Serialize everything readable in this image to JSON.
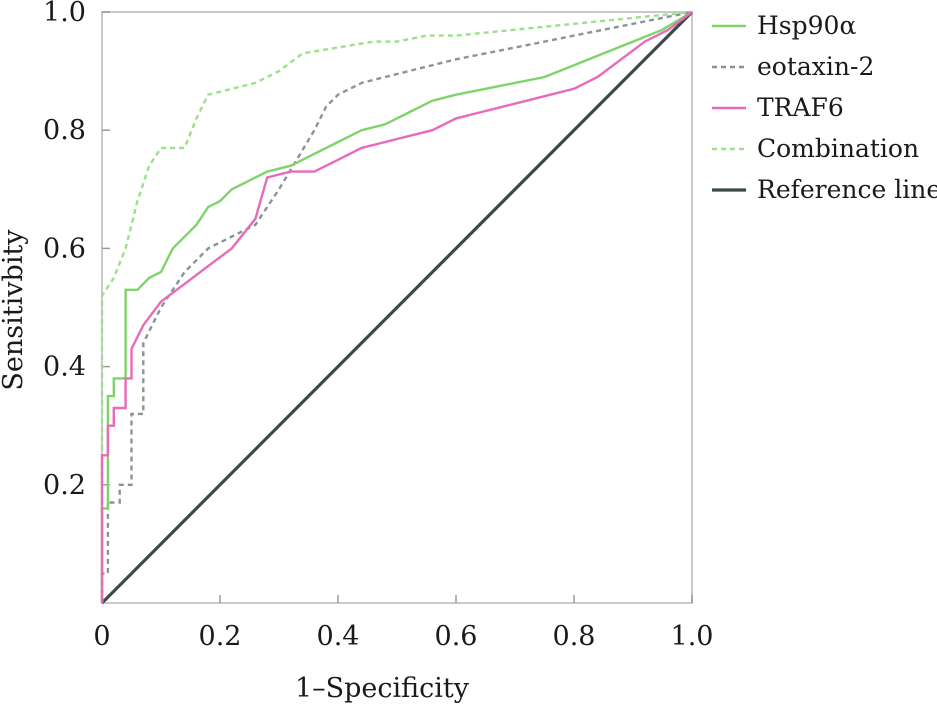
{
  "chart_data": {
    "type": "line",
    "xlabel": "1–Specificity",
    "ylabel": "Sensitivbity",
    "xlim": [
      0,
      1
    ],
    "ylim": [
      0,
      1
    ],
    "x_ticks": [
      {
        "value": 0,
        "label": "0"
      },
      {
        "value": 0.2,
        "label": "0.2"
      },
      {
        "value": 0.4,
        "label": "0.4"
      },
      {
        "value": 0.6,
        "label": "0.6"
      },
      {
        "value": 0.8,
        "label": "0.8"
      },
      {
        "value": 1.0,
        "label": "1.0"
      }
    ],
    "y_ticks": [
      {
        "value": 0.2,
        "label": "0.2"
      },
      {
        "value": 0.4,
        "label": "0.4"
      },
      {
        "value": 0.6,
        "label": "0.6"
      },
      {
        "value": 0.8,
        "label": "0.8"
      },
      {
        "value": 1.0,
        "label": "1.0"
      }
    ],
    "legend_position": "right",
    "series": [
      {
        "name": "Hsp90α",
        "color": "#7ed36a",
        "style": "solid",
        "x": [
          0,
          0,
          0.01,
          0.01,
          0.02,
          0.02,
          0.04,
          0.04,
          0.06,
          0.08,
          0.1,
          0.12,
          0.14,
          0.16,
          0.18,
          0.2,
          0.22,
          0.24,
          0.28,
          0.32,
          0.36,
          0.4,
          0.44,
          0.48,
          0.52,
          0.56,
          0.6,
          0.65,
          0.7,
          0.75,
          0.8,
          0.85,
          0.9,
          0.95,
          1.0
        ],
        "y": [
          0,
          0.16,
          0.16,
          0.35,
          0.35,
          0.38,
          0.38,
          0.53,
          0.53,
          0.55,
          0.56,
          0.6,
          0.62,
          0.64,
          0.67,
          0.68,
          0.7,
          0.71,
          0.73,
          0.74,
          0.76,
          0.78,
          0.8,
          0.81,
          0.83,
          0.85,
          0.86,
          0.87,
          0.88,
          0.89,
          0.91,
          0.93,
          0.95,
          0.97,
          1.0
        ]
      },
      {
        "name": "eotaxin-2",
        "color": "#8a9398",
        "style": "dashed",
        "x": [
          0,
          0,
          0.01,
          0.01,
          0.03,
          0.03,
          0.05,
          0.05,
          0.07,
          0.07,
          0.1,
          0.14,
          0.18,
          0.22,
          0.26,
          0.3,
          0.33,
          0.36,
          0.38,
          0.4,
          0.44,
          0.48,
          0.52,
          0.56,
          0.6,
          0.65,
          0.7,
          0.75,
          0.8,
          0.85,
          0.9,
          0.95,
          1.0
        ],
        "y": [
          0,
          0.05,
          0.05,
          0.17,
          0.17,
          0.2,
          0.2,
          0.32,
          0.32,
          0.44,
          0.5,
          0.56,
          0.6,
          0.62,
          0.64,
          0.7,
          0.75,
          0.8,
          0.84,
          0.86,
          0.88,
          0.89,
          0.9,
          0.91,
          0.92,
          0.93,
          0.94,
          0.95,
          0.96,
          0.97,
          0.98,
          0.99,
          1.0
        ]
      },
      {
        "name": "TRAF6",
        "color": "#e86ab8",
        "style": "solid",
        "x": [
          0,
          0,
          0.01,
          0.01,
          0.02,
          0.02,
          0.04,
          0.04,
          0.05,
          0.05,
          0.07,
          0.1,
          0.14,
          0.18,
          0.22,
          0.26,
          0.28,
          0.32,
          0.36,
          0.4,
          0.44,
          0.48,
          0.52,
          0.56,
          0.6,
          0.64,
          0.68,
          0.72,
          0.76,
          0.8,
          0.84,
          0.88,
          0.92,
          0.96,
          1.0
        ],
        "y": [
          0,
          0.25,
          0.25,
          0.3,
          0.3,
          0.33,
          0.33,
          0.38,
          0.38,
          0.43,
          0.47,
          0.51,
          0.54,
          0.57,
          0.6,
          0.65,
          0.72,
          0.73,
          0.73,
          0.75,
          0.77,
          0.78,
          0.79,
          0.8,
          0.82,
          0.83,
          0.84,
          0.85,
          0.86,
          0.87,
          0.89,
          0.92,
          0.95,
          0.97,
          1.0
        ]
      },
      {
        "name": "Combination",
        "color": "#9be08a",
        "style": "dashed",
        "x": [
          0,
          0,
          0.02,
          0.04,
          0.06,
          0.08,
          0.1,
          0.14,
          0.16,
          0.18,
          0.22,
          0.26,
          0.3,
          0.34,
          0.4,
          0.46,
          0.5,
          0.55,
          0.6,
          0.7,
          0.8,
          0.9,
          1.0
        ],
        "y": [
          0,
          0.52,
          0.55,
          0.6,
          0.68,
          0.74,
          0.77,
          0.77,
          0.82,
          0.86,
          0.87,
          0.88,
          0.9,
          0.93,
          0.94,
          0.95,
          0.95,
          0.96,
          0.96,
          0.97,
          0.98,
          0.99,
          1.0
        ]
      },
      {
        "name": "Reference line",
        "color": "#3a4a48",
        "style": "solid",
        "x": [
          0,
          1
        ],
        "y": [
          0,
          1
        ]
      }
    ]
  }
}
